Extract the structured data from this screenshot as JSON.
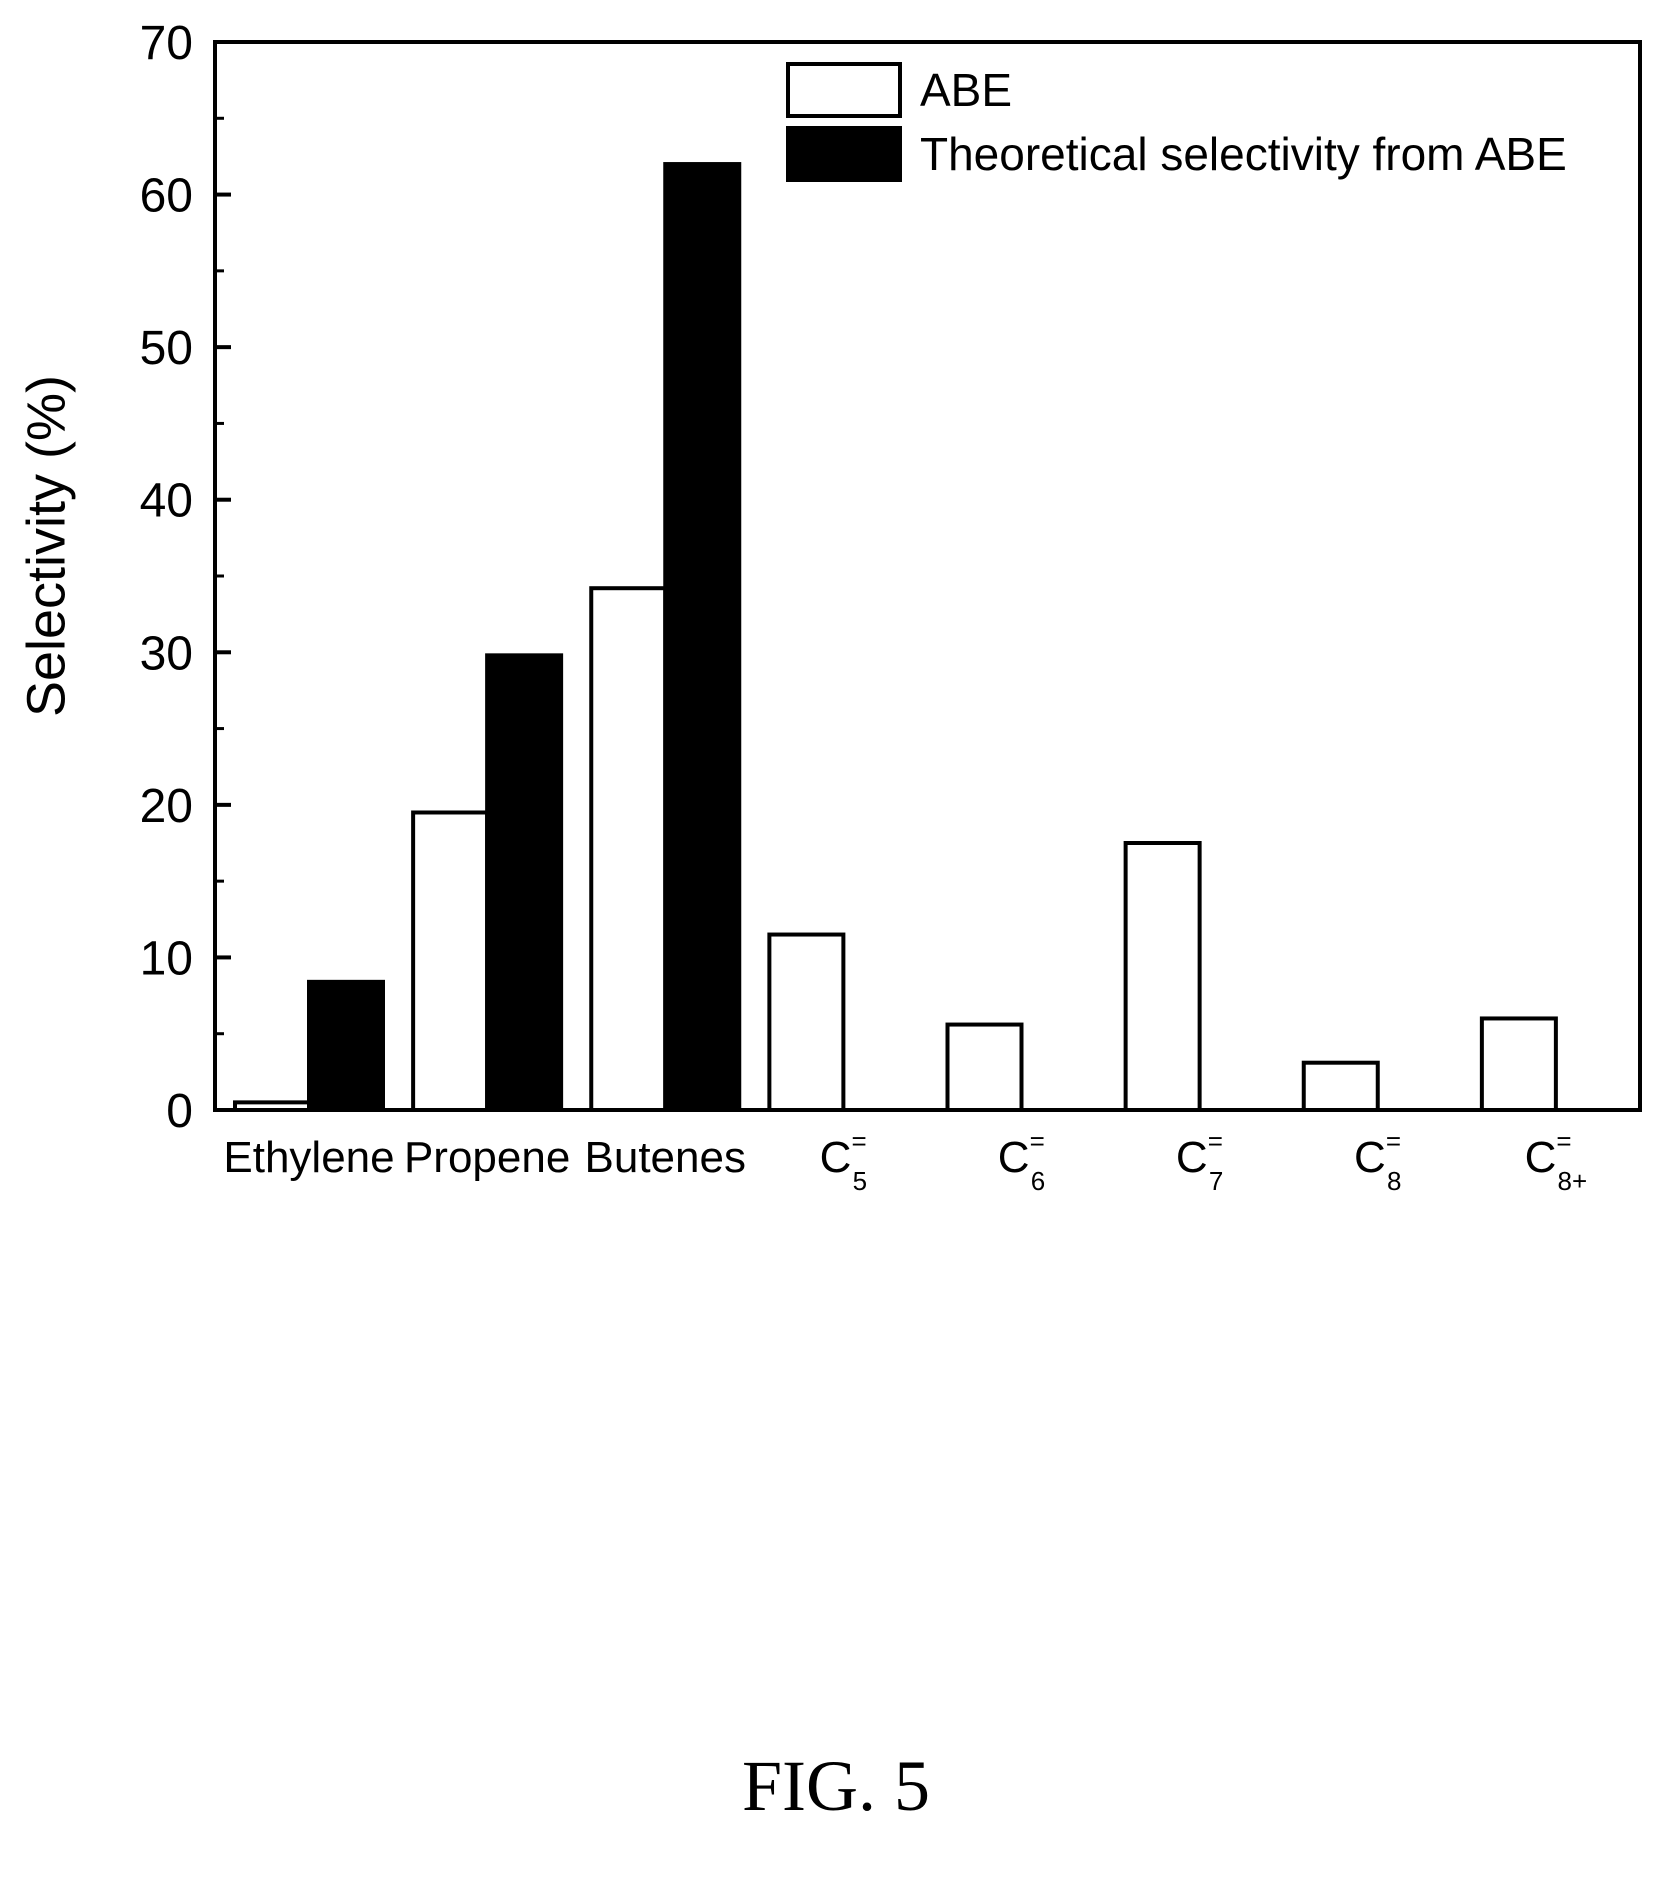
{
  "chart_data": {
    "type": "bar",
    "categories": [
      {
        "base": "Ethylene",
        "sub": "",
        "sup": ""
      },
      {
        "base": "Propene",
        "sub": "",
        "sup": ""
      },
      {
        "base": "Butenes",
        "sub": "",
        "sup": ""
      },
      {
        "base": "C",
        "sub": "5",
        "sup": "="
      },
      {
        "base": "C",
        "sub": "6",
        "sup": "="
      },
      {
        "base": "C",
        "sub": "7",
        "sup": "="
      },
      {
        "base": "C",
        "sub": "8",
        "sup": "="
      },
      {
        "base": "C",
        "sub": "8+",
        "sup": "="
      }
    ],
    "series": [
      {
        "name": "ABE",
        "color": "#ffffff",
        "values": [
          0.5,
          19.5,
          34.2,
          11.5,
          5.6,
          17.5,
          3.1,
          6.0
        ]
      },
      {
        "name": "Theoretical selectivity from ABE",
        "color": "#000000",
        "values": [
          8.4,
          29.8,
          62.0,
          null,
          null,
          null,
          null,
          null
        ]
      }
    ],
    "xlabel": "",
    "ylabel": "Selectivity (%)",
    "ylim": [
      0,
      70
    ],
    "yticks": [
      0,
      10,
      20,
      30,
      40,
      50,
      60,
      70
    ],
    "legend_position": "top-right",
    "grid": false
  },
  "figure": {
    "caption": "FIG. 5"
  }
}
